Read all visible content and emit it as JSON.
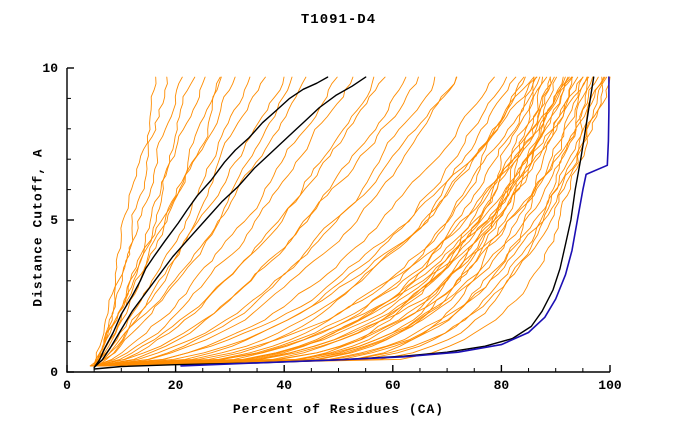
{
  "title": "T1091-D4",
  "chart_data": {
    "type": "line",
    "title": "T1091-D4",
    "xlabel": "Percent of Residues (CA)",
    "ylabel": "Distance Cutoff, A",
    "xlim": [
      0,
      100
    ],
    "ylim": [
      0,
      10
    ],
    "x_ticks": [
      0,
      20,
      40,
      60,
      80,
      100
    ],
    "y_ticks": [
      0,
      5,
      10
    ],
    "grid": false,
    "legend": "none",
    "colors": {
      "ensemble": "#ff8c00",
      "highlight": "#000000",
      "reference": "#1c0fb4",
      "axis": "#000000",
      "background": "#ffffff"
    },
    "highlight_series": [
      {
        "name": "black-model-1",
        "color": "#000000",
        "width": 1.4,
        "points": [
          [
            5,
            0.15
          ],
          [
            6,
            0.4
          ],
          [
            7,
            0.8
          ],
          [
            8.5,
            1.3
          ],
          [
            10,
            1.9
          ],
          [
            12,
            2.5
          ],
          [
            13.5,
            3.0
          ],
          [
            14.5,
            3.4
          ],
          [
            16,
            3.8
          ],
          [
            18,
            4.3
          ],
          [
            20.5,
            4.9
          ],
          [
            22,
            5.3
          ],
          [
            24,
            5.8
          ],
          [
            26.5,
            6.3
          ],
          [
            29,
            6.9
          ],
          [
            31,
            7.3
          ],
          [
            33.5,
            7.7
          ],
          [
            36,
            8.2
          ],
          [
            38.5,
            8.6
          ],
          [
            41,
            9.0
          ],
          [
            43.5,
            9.3
          ],
          [
            46,
            9.5
          ],
          [
            48,
            9.7
          ]
        ]
      },
      {
        "name": "black-model-2",
        "color": "#000000",
        "width": 1.4,
        "points": [
          [
            5,
            0.15
          ],
          [
            6.5,
            0.4
          ],
          [
            8,
            0.8
          ],
          [
            10,
            1.4
          ],
          [
            12,
            2.0
          ],
          [
            14.5,
            2.6
          ],
          [
            17,
            3.2
          ],
          [
            19.5,
            3.8
          ],
          [
            22.5,
            4.4
          ],
          [
            25.5,
            5.0
          ],
          [
            28.5,
            5.6
          ],
          [
            31.5,
            6.1
          ],
          [
            34.5,
            6.7
          ],
          [
            37.5,
            7.2
          ],
          [
            40.5,
            7.7
          ],
          [
            43.5,
            8.2
          ],
          [
            46.5,
            8.7
          ],
          [
            49.5,
            9.1
          ],
          [
            52.5,
            9.4
          ],
          [
            55,
            9.7
          ]
        ]
      },
      {
        "name": "black-model-right",
        "color": "#000000",
        "width": 1.4,
        "points": [
          [
            5,
            0.1
          ],
          [
            10,
            0.18
          ],
          [
            20,
            0.24
          ],
          [
            35,
            0.3
          ],
          [
            50,
            0.4
          ],
          [
            62,
            0.52
          ],
          [
            70,
            0.65
          ],
          [
            77,
            0.85
          ],
          [
            82,
            1.1
          ],
          [
            85.5,
            1.5
          ],
          [
            87.5,
            2.0
          ],
          [
            89.5,
            2.7
          ],
          [
            90.8,
            3.4
          ],
          [
            91.8,
            4.2
          ],
          [
            92.8,
            5.0
          ],
          [
            93.6,
            6.0
          ],
          [
            94.6,
            7.0
          ],
          [
            95.5,
            8.0
          ],
          [
            96.2,
            8.8
          ],
          [
            97,
            9.7
          ]
        ]
      }
    ],
    "reference_series": {
      "name": "blue-reference",
      "color": "#1c0fb4",
      "width": 1.6,
      "points": [
        [
          21,
          0.2
        ],
        [
          35,
          0.3
        ],
        [
          50,
          0.4
        ],
        [
          62,
          0.5
        ],
        [
          72,
          0.65
        ],
        [
          80,
          0.9
        ],
        [
          85,
          1.3
        ],
        [
          88,
          1.8
        ],
        [
          90,
          2.4
        ],
        [
          91.8,
          3.2
        ],
        [
          93,
          4.0
        ],
        [
          94,
          5.0
        ],
        [
          95,
          6.0
        ],
        [
          95.6,
          6.5
        ],
        [
          99.5,
          6.8
        ],
        [
          99.7,
          7.6
        ],
        [
          99.8,
          8.6
        ],
        [
          99.8,
          9.7
        ]
      ]
    },
    "ensemble": {
      "description": "orange prediction curves, params per curve: [reach_x_at_top, shape_exponent, seed, wiggle_amp]",
      "x_start": 5,
      "y_start": 0.2,
      "y_end": 9.7,
      "curves_r_c_seed_amp": [
        [
          17,
          0.95,
          1,
          0.9
        ],
        [
          19,
          0.9,
          2,
          0.9
        ],
        [
          21,
          1.0,
          3,
          0.9
        ],
        [
          23,
          0.85,
          4,
          0.9
        ],
        [
          25,
          0.95,
          5,
          0.9
        ],
        [
          27,
          0.9,
          6,
          0.9
        ],
        [
          29,
          0.8,
          7,
          0.9
        ],
        [
          31,
          0.9,
          8,
          0.9
        ],
        [
          34,
          0.85,
          9,
          0.9
        ],
        [
          37,
          0.8,
          10,
          0.9
        ],
        [
          40,
          0.85,
          11,
          0.9
        ],
        [
          43,
          0.75,
          12,
          0.9
        ],
        [
          46,
          0.8,
          13,
          0.9
        ],
        [
          50,
          0.7,
          14,
          1.0
        ],
        [
          53,
          0.65,
          15,
          1.0
        ],
        [
          56,
          0.6,
          16,
          1.0
        ],
        [
          59,
          0.65,
          17,
          1.0
        ],
        [
          62,
          0.55,
          18,
          1.0
        ],
        [
          65,
          0.6,
          19,
          1.0
        ],
        [
          68,
          0.5,
          20,
          1.0
        ],
        [
          71,
          0.55,
          21,
          1.0
        ],
        [
          74,
          0.5,
          22,
          1.0
        ],
        [
          77,
          0.45,
          23,
          1.0
        ],
        [
          80,
          0.4,
          24,
          1.1
        ],
        [
          82,
          0.35,
          25,
          1.1
        ],
        [
          84,
          0.3,
          26,
          1.1
        ],
        [
          85,
          0.38,
          27,
          1.1
        ],
        [
          86,
          0.28,
          28,
          1.1
        ],
        [
          87,
          0.33,
          29,
          1.1
        ],
        [
          88,
          0.25,
          30,
          1.1
        ],
        [
          89,
          0.3,
          31,
          1.1
        ],
        [
          90,
          0.22,
          32,
          1.1
        ],
        [
          91,
          0.28,
          33,
          1.1
        ],
        [
          92,
          0.2,
          34,
          1.1
        ],
        [
          93,
          0.25,
          35,
          1.1
        ],
        [
          94,
          0.18,
          36,
          1.1
        ],
        [
          95,
          0.22,
          37,
          1.1
        ],
        [
          96,
          0.16,
          38,
          1.1
        ],
        [
          97,
          0.2,
          39,
          1.1
        ],
        [
          98,
          0.15,
          40,
          1.1
        ],
        [
          99,
          0.18,
          41,
          1.1
        ],
        [
          100,
          0.14,
          42,
          1.1
        ],
        [
          85,
          0.2,
          43,
          1.2
        ],
        [
          88,
          0.18,
          44,
          1.2
        ],
        [
          90,
          0.3,
          45,
          1.2
        ],
        [
          92,
          0.35,
          46,
          1.2
        ],
        [
          94,
          0.28,
          47,
          1.2
        ],
        [
          96,
          0.32,
          48,
          1.2
        ],
        [
          98,
          0.24,
          49,
          1.2
        ],
        [
          100,
          0.2,
          50,
          1.2
        ],
        [
          99,
          0.3,
          51,
          1.2
        ],
        [
          97,
          0.26,
          52,
          1.2
        ],
        [
          95,
          0.35,
          53,
          1.2
        ],
        [
          93,
          0.4,
          54,
          1.2
        ],
        [
          91,
          0.16,
          55,
          1.2
        ],
        [
          89,
          0.2,
          56,
          1.2
        ],
        [
          87,
          0.45,
          57,
          1.2
        ],
        [
          86,
          0.5,
          58,
          1.2
        ]
      ]
    }
  }
}
